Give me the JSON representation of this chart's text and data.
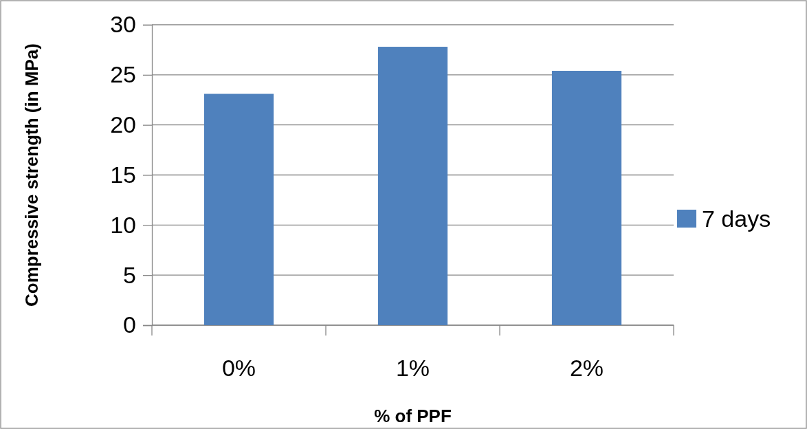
{
  "chart_data": {
    "type": "bar",
    "categories": [
      "0%",
      "1%",
      "2%"
    ],
    "series": [
      {
        "name": "7 days",
        "color": "#4f81bd",
        "values": [
          23.1,
          27.8,
          25.4
        ]
      }
    ],
    "xlabel": "% of PPF",
    "ylabel": "Compressive strength (in MPa)",
    "ylim": [
      0,
      30
    ],
    "yticks": [
      0,
      5,
      10,
      15,
      20,
      25,
      30
    ],
    "grid": "y",
    "legend": "right"
  }
}
